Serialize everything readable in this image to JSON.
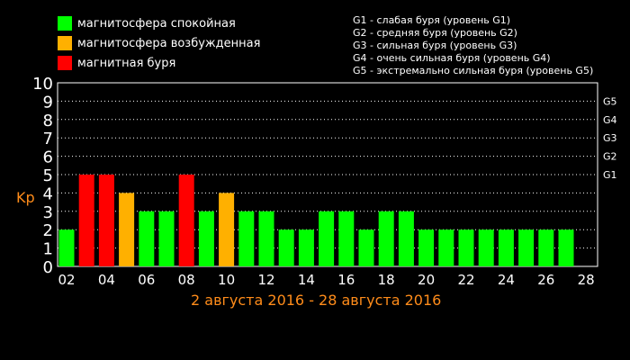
{
  "legend": [
    {
      "label": "магнитосфера спокойная",
      "color": "#00ff00"
    },
    {
      "label": "магнитосфера возбужденная",
      "color": "#ffb000"
    },
    {
      "label": "магнитная буря",
      "color": "#ff0000"
    }
  ],
  "g_levels": [
    "G1 - слабая буря (уровень G1)",
    "G2 - средняя буря (уровень G2)",
    "G3 - сильная буря (уровень G3)",
    "G4 - очень сильная буря (уровень G4)",
    "G5 - экстремально сильная буря (уровень G5)"
  ],
  "date_range": "2 августа 2016 - 28 августа 2016",
  "chart_data": {
    "type": "bar",
    "ylabel": "Kp",
    "ylim": [
      0,
      10
    ],
    "y_ticks": [
      "0",
      "1",
      "2",
      "3",
      "4",
      "5",
      "6",
      "7",
      "8",
      "9",
      "10"
    ],
    "right_ticks": [
      {
        "label": "G1",
        "value": 5
      },
      {
        "label": "G2",
        "value": 6
      },
      {
        "label": "G3",
        "value": 7
      },
      {
        "label": "G4",
        "value": 8
      },
      {
        "label": "G5",
        "value": 9
      }
    ],
    "x_tick_labels": [
      "02",
      "04",
      "06",
      "08",
      "10",
      "12",
      "14",
      "16",
      "18",
      "20",
      "22",
      "24",
      "26",
      "28"
    ],
    "grid": "horizontal dotted",
    "categories": [
      "02",
      "03",
      "04",
      "05",
      "06",
      "07",
      "08",
      "09",
      "10",
      "11",
      "12",
      "13",
      "14",
      "15",
      "16",
      "17",
      "18",
      "19",
      "20",
      "21",
      "22",
      "23",
      "24",
      "25",
      "26",
      "27"
    ],
    "values": [
      2,
      5,
      5,
      4,
      3,
      3,
      5,
      3,
      4,
      3,
      3,
      2,
      2,
      3,
      3,
      2,
      3,
      3,
      2,
      2,
      2,
      2,
      2,
      2,
      2,
      2
    ],
    "levels": [
      "quiet",
      "storm",
      "storm",
      "active",
      "quiet",
      "quiet",
      "storm",
      "quiet",
      "active",
      "quiet",
      "quiet",
      "quiet",
      "quiet",
      "quiet",
      "quiet",
      "quiet",
      "quiet",
      "quiet",
      "quiet",
      "quiet",
      "quiet",
      "quiet",
      "quiet",
      "quiet",
      "quiet",
      "quiet"
    ],
    "level_colors": {
      "quiet": "#00ff00",
      "active": "#ffb000",
      "storm": "#ff0000"
    }
  }
}
